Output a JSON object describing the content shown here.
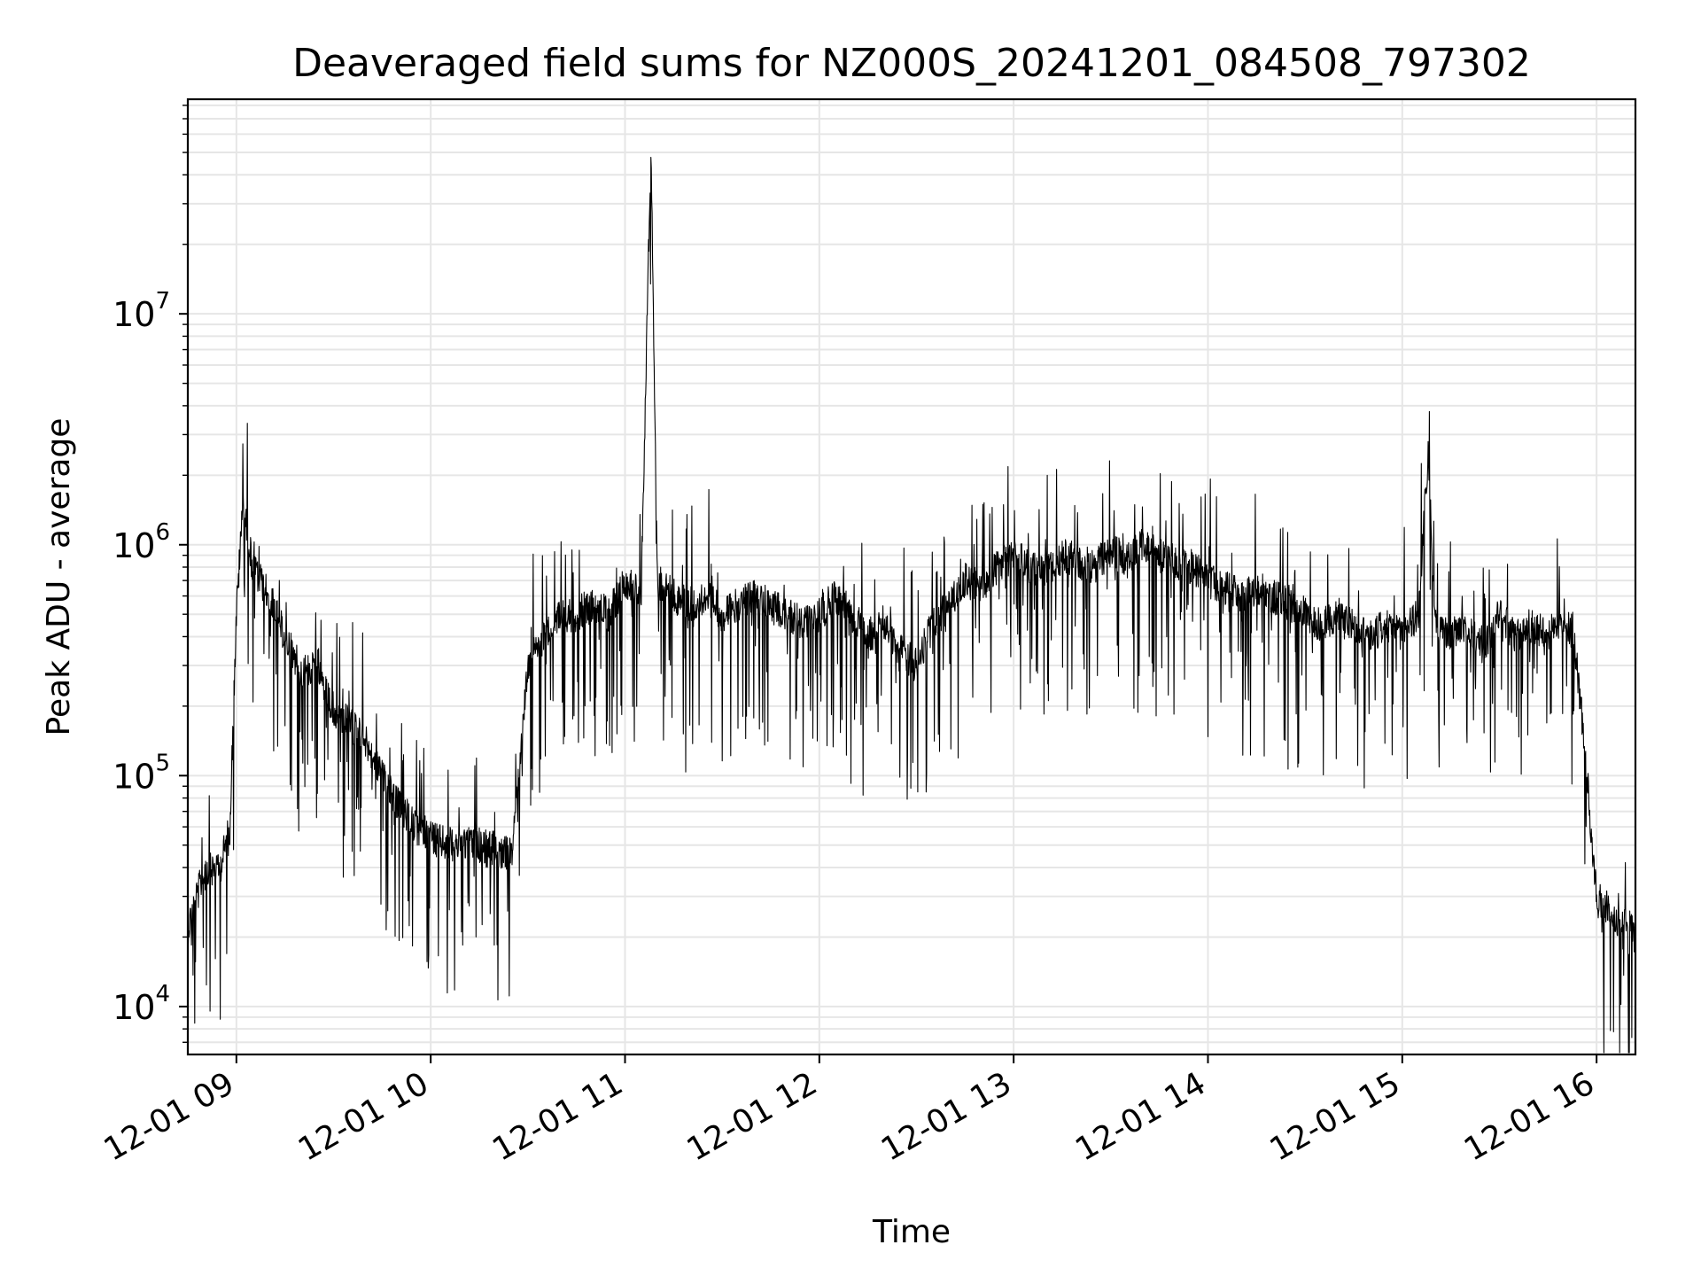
{
  "chart_data": {
    "type": "line",
    "title": "Deaveraged field sums for NZ000S_20241201_084508_797302",
    "xlabel": "Time",
    "ylabel": "Peak ADU - average",
    "yscale": "log",
    "ylim": [
      6200,
      85000000
    ],
    "xlim": [
      "2024-12-01 08:45",
      "2024-12-01 16:12"
    ],
    "grid": true,
    "line_color": "#000000",
    "grid_color": "#e6e6e6",
    "x_ticks": [
      {
        "label": "12-01 09",
        "value": "2024-12-01 09:00"
      },
      {
        "label": "12-01 10",
        "value": "2024-12-01 10:00"
      },
      {
        "label": "12-01 11",
        "value": "2024-12-01 11:00"
      },
      {
        "label": "12-01 12",
        "value": "2024-12-01 12:00"
      },
      {
        "label": "12-01 13",
        "value": "2024-12-01 13:00"
      },
      {
        "label": "12-01 14",
        "value": "2024-12-01 14:00"
      },
      {
        "label": "12-01 15",
        "value": "2024-12-01 15:00"
      },
      {
        "label": "12-01 16",
        "value": "2024-12-01 16:00"
      }
    ],
    "y_ticks": [
      {
        "value": 10000,
        "base": "10",
        "exp": "4"
      },
      {
        "value": 100000,
        "base": "10",
        "exp": "5"
      },
      {
        "value": 1000000,
        "base": "10",
        "exp": "6"
      },
      {
        "value": 10000000,
        "base": "10",
        "exp": "7"
      }
    ],
    "series": [
      {
        "x": [
          "2024-12-01 08:45",
          "2024-12-01 08:50",
          "2024-12-01 08:55",
          "2024-12-01 08:58",
          "2024-12-01 09:00",
          "2024-12-01 09:02",
          "2024-12-01 09:05",
          "2024-12-01 09:10",
          "2024-12-01 09:15",
          "2024-12-01 09:20",
          "2024-12-01 09:25",
          "2024-12-01 09:30",
          "2024-12-01 09:35",
          "2024-12-01 09:40",
          "2024-12-01 09:45",
          "2024-12-01 09:50",
          "2024-12-01 09:55",
          "2024-12-01 10:00",
          "2024-12-01 10:05",
          "2024-12-01 10:10",
          "2024-12-01 10:15",
          "2024-12-01 10:20",
          "2024-12-01 10:25",
          "2024-12-01 10:30",
          "2024-12-01 10:35",
          "2024-12-01 10:40",
          "2024-12-01 10:45",
          "2024-12-01 10:50",
          "2024-12-01 10:55",
          "2024-12-01 11:00",
          "2024-12-01 11:05",
          "2024-12-01 11:08",
          "2024-12-01 11:10",
          "2024-12-01 11:15",
          "2024-12-01 11:20",
          "2024-12-01 11:25",
          "2024-12-01 11:30",
          "2024-12-01 11:35",
          "2024-12-01 11:40",
          "2024-12-01 11:45",
          "2024-12-01 11:50",
          "2024-12-01 11:55",
          "2024-12-01 12:00",
          "2024-12-01 12:05",
          "2024-12-01 12:10",
          "2024-12-01 12:15",
          "2024-12-01 12:20",
          "2024-12-01 12:25",
          "2024-12-01 12:30",
          "2024-12-01 12:35",
          "2024-12-01 12:40",
          "2024-12-01 12:45",
          "2024-12-01 12:50",
          "2024-12-01 12:55",
          "2024-12-01 13:00",
          "2024-12-01 13:05",
          "2024-12-01 13:10",
          "2024-12-01 13:15",
          "2024-12-01 13:20",
          "2024-12-01 13:25",
          "2024-12-01 13:30",
          "2024-12-01 13:35",
          "2024-12-01 13:40",
          "2024-12-01 13:45",
          "2024-12-01 13:50",
          "2024-12-01 13:55",
          "2024-12-01 14:00",
          "2024-12-01 14:05",
          "2024-12-01 14:10",
          "2024-12-01 14:15",
          "2024-12-01 14:20",
          "2024-12-01 14:25",
          "2024-12-01 14:30",
          "2024-12-01 14:35",
          "2024-12-01 14:40",
          "2024-12-01 14:45",
          "2024-12-01 14:50",
          "2024-12-01 14:55",
          "2024-12-01 15:00",
          "2024-12-01 15:05",
          "2024-12-01 15:08",
          "2024-12-01 15:10",
          "2024-12-01 15:15",
          "2024-12-01 15:20",
          "2024-12-01 15:25",
          "2024-12-01 15:30",
          "2024-12-01 15:35",
          "2024-12-01 15:40",
          "2024-12-01 15:45",
          "2024-12-01 15:50",
          "2024-12-01 15:53",
          "2024-12-01 15:56",
          "2024-12-01 16:00",
          "2024-12-01 16:05",
          "2024-12-01 16:10",
          "2024-12-01 16:12"
        ],
        "y": [
          22000,
          38000,
          40000,
          60000,
          500000,
          1500000,
          800000,
          600000,
          400000,
          280000,
          300000,
          180000,
          170000,
          140000,
          100000,
          75000,
          60000,
          55000,
          50000,
          52000,
          50000,
          48000,
          45000,
          300000,
          400000,
          500000,
          500000,
          550000,
          500000,
          700000,
          650000,
          55000000,
          700000,
          600000,
          550000,
          600000,
          500000,
          550000,
          600000,
          550000,
          500000,
          450000,
          500000,
          600000,
          500000,
          400000,
          450000,
          350000,
          300000,
          450000,
          550000,
          700000,
          650000,
          800000,
          900000,
          800000,
          750000,
          900000,
          850000,
          800000,
          950000,
          850000,
          1000000,
          900000,
          850000,
          800000,
          700000,
          650000,
          600000,
          650000,
          600000,
          550000,
          500000,
          450000,
          500000,
          450000,
          400000,
          450000,
          400000,
          500000,
          2500000,
          450000,
          400000,
          450000,
          350000,
          500000,
          400000,
          450000,
          400000,
          500000,
          400000,
          150000,
          30000,
          25000,
          22000,
          20000
        ]
      }
    ]
  }
}
